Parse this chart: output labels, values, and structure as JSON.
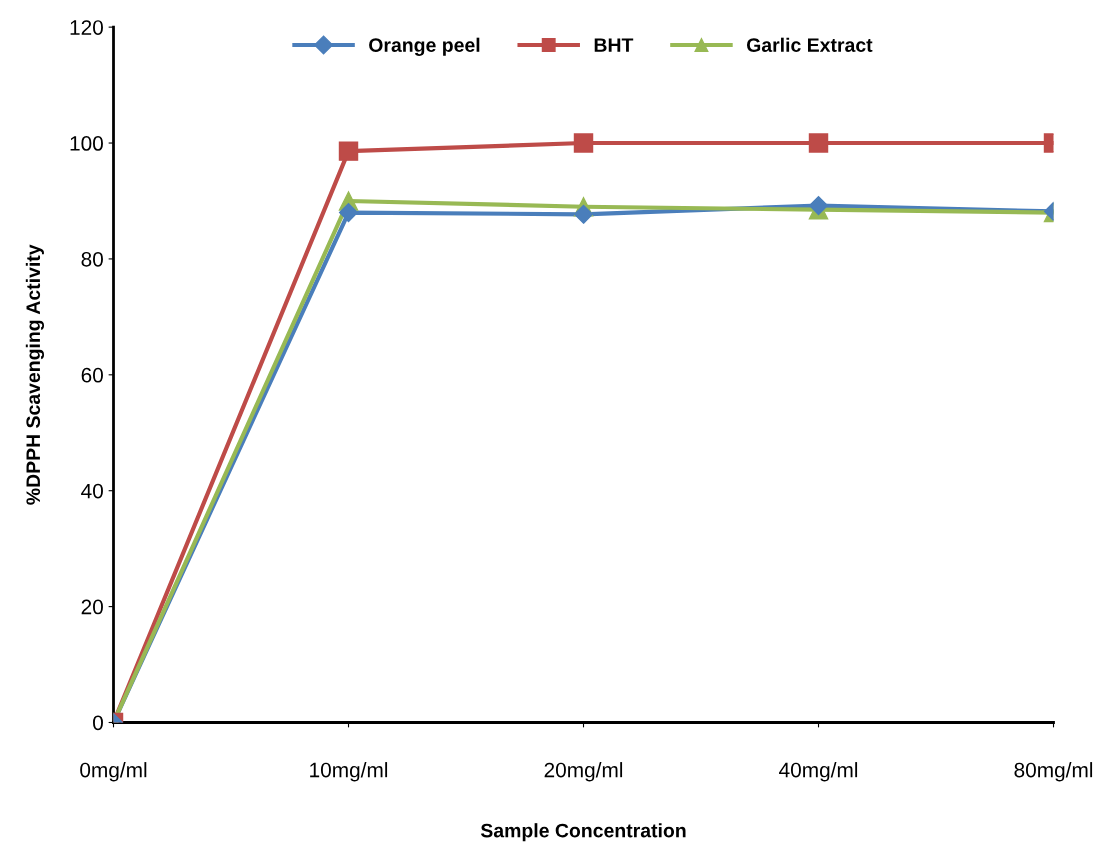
{
  "chart_data": {
    "type": "line",
    "xlabel": "Sample Concentration",
    "ylabel": "%DPPH Scavenging Activity",
    "categories": [
      "0mg/ml",
      "10mg/ml",
      "20mg/ml",
      "40mg/ml",
      "80mg/ml"
    ],
    "series": [
      {
        "name": "Orange peel",
        "color": "#4a7ebb",
        "marker": "diamond",
        "values": [
          0,
          88,
          87.7,
          89.2,
          88.2
        ]
      },
      {
        "name": "BHT",
        "color": "#be4b48",
        "marker": "square",
        "values": [
          0,
          98.6,
          100,
          100,
          100
        ]
      },
      {
        "name": "Garlic Extract",
        "color": "#98b954",
        "marker": "triangle",
        "values": [
          0,
          90,
          89,
          88.5,
          88
        ]
      }
    ],
    "ylim": [
      0,
      120
    ],
    "yticks": [
      0,
      20,
      40,
      60,
      80,
      100,
      120
    ],
    "grid": false,
    "legend": "top"
  }
}
